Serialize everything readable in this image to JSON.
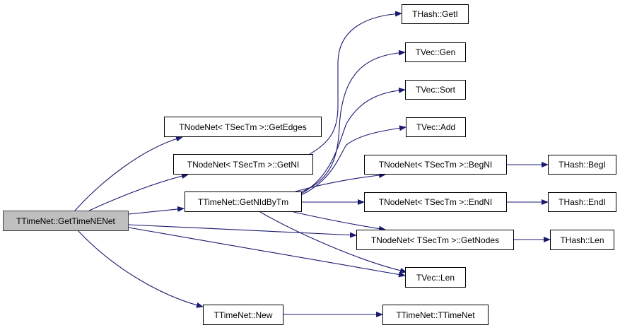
{
  "nodes": {
    "root": "TTimeNet::GetTimeNENet",
    "getEdges": "TNodeNet< TSecTm >::GetEdges",
    "getNI": "TNodeNet< TSecTm >::GetNI",
    "getNIdByTm": "TTimeNet::GetNIdByTm",
    "hashGetI": "THash::GetI",
    "vecGen": "TVec::Gen",
    "vecSort": "TVec::Sort",
    "vecAdd": "TVec::Add",
    "begNI": "TNodeNet< TSecTm >::BegNI",
    "endNI": "TNodeNet< TSecTm >::EndNI",
    "getNodes": "TNodeNet< TSecTm >::GetNodes",
    "vecLen": "TVec::Len",
    "hashBegI": "THash::BegI",
    "hashEndI": "THash::EndI",
    "hashLen": "THash::Len",
    "newNet": "TTimeNet::New",
    "ctor": "TTimeNet::TTimeNet"
  },
  "edges": [
    [
      "root",
      "getEdges"
    ],
    [
      "root",
      "getNI"
    ],
    [
      "root",
      "getNIdByTm"
    ],
    [
      "root",
      "getNodes"
    ],
    [
      "root",
      "vecLen"
    ],
    [
      "root",
      "newNet"
    ],
    [
      "getNI",
      "hashGetI"
    ],
    [
      "getNIdByTm",
      "vecGen"
    ],
    [
      "getNIdByTm",
      "vecSort"
    ],
    [
      "getNIdByTm",
      "vecAdd"
    ],
    [
      "getNIdByTm",
      "begNI"
    ],
    [
      "getNIdByTm",
      "endNI"
    ],
    [
      "getNIdByTm",
      "getNodes"
    ],
    [
      "getNIdByTm",
      "vecLen"
    ],
    [
      "begNI",
      "hashBegI"
    ],
    [
      "endNI",
      "hashEndI"
    ],
    [
      "getNodes",
      "hashLen"
    ],
    [
      "newNet",
      "ctor"
    ]
  ],
  "colors": {
    "edge": "#191970",
    "root_fill": "#bfbfbf",
    "node_fill": "#ffffff"
  }
}
